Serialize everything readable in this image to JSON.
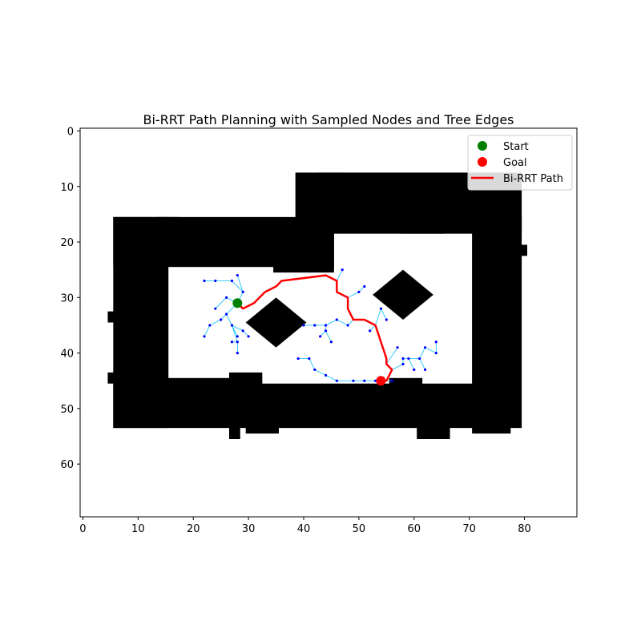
{
  "chart_data": {
    "type": "scatter",
    "title": "Bi-RRT Path Planning with Sampled Nodes and Tree Edges",
    "xlabel": "",
    "ylabel": "",
    "xlim": [
      -0.5,
      89.5
    ],
    "ylim": [
      69.5,
      -0.5
    ],
    "y_inverted": true,
    "x_ticks": [
      0,
      10,
      20,
      30,
      40,
      50,
      60,
      70,
      80
    ],
    "y_ticks": [
      0,
      10,
      20,
      30,
      40,
      50,
      60
    ],
    "grid": false,
    "legend": {
      "placement": "top-right",
      "entries": [
        {
          "label": "Start",
          "marker": "circle",
          "color": "#008000"
        },
        {
          "label": "Goal",
          "marker": "circle",
          "color": "#ff0000"
        },
        {
          "label": "Bi-RRT Path",
          "marker": "line",
          "color": "#ff0000"
        }
      ]
    },
    "colors": {
      "obstacle": "#000000",
      "free": "#ffffff",
      "tree_node": "#0000ff",
      "tree_edge": "#00bfff",
      "path": "#ff0000",
      "start": "#008000",
      "goal": "#ff0000"
    },
    "start": [
      28,
      31
    ],
    "goal": [
      54,
      45
    ],
    "obstacle_rects": [
      [
        6,
        16,
        15,
        53
      ],
      [
        6,
        16,
        45,
        24
      ],
      [
        6,
        46,
        76,
        53
      ],
      [
        71,
        16,
        79,
        53
      ],
      [
        39,
        8,
        79,
        18
      ],
      [
        43,
        8,
        47,
        16
      ],
      [
        14,
        16,
        17,
        17
      ],
      [
        35,
        18,
        45,
        25
      ],
      [
        12,
        45,
        29,
        46
      ],
      [
        27,
        44,
        32,
        46
      ],
      [
        58,
        16,
        65,
        18
      ],
      [
        66,
        11,
        69,
        12
      ],
      [
        71,
        53,
        77,
        54
      ],
      [
        5,
        33,
        6,
        34
      ],
      [
        5,
        44,
        6,
        45
      ],
      [
        79,
        21,
        80,
        22
      ],
      [
        30,
        53,
        35,
        54
      ],
      [
        27,
        53,
        28,
        55
      ],
      [
        61,
        53,
        66,
        55
      ],
      [
        56,
        45,
        61,
        47
      ]
    ],
    "obstacle_blobs": [
      {
        "cx": 35,
        "cy": 34.5,
        "rx": 5.5,
        "ry": 4.5
      },
      {
        "cx": 58,
        "cy": 29.5,
        "rx": 5.5,
        "ry": 4.5
      }
    ],
    "path": [
      [
        28,
        31
      ],
      [
        29,
        32
      ],
      [
        31,
        31
      ],
      [
        33,
        29
      ],
      [
        35,
        28
      ],
      [
        36,
        27
      ],
      [
        44,
        26
      ],
      [
        46,
        27
      ],
      [
        46,
        29
      ],
      [
        48,
        30
      ],
      [
        48,
        32
      ],
      [
        49,
        34
      ],
      [
        51,
        34
      ],
      [
        53,
        35
      ],
      [
        54,
        38
      ],
      [
        55,
        41
      ],
      [
        55,
        42
      ],
      [
        56,
        43
      ],
      [
        55,
        45
      ],
      [
        54,
        45
      ]
    ],
    "tree_edges": [
      [
        [
          28,
          31
        ],
        [
          29,
          29
        ]
      ],
      [
        [
          29,
          29
        ],
        [
          27,
          27
        ]
      ],
      [
        [
          27,
          27
        ],
        [
          24,
          27
        ]
      ],
      [
        [
          24,
          27
        ],
        [
          22,
          27
        ]
      ],
      [
        [
          29,
          29
        ],
        [
          28,
          26
        ]
      ],
      [
        [
          28,
          31
        ],
        [
          26,
          33
        ]
      ],
      [
        [
          26,
          33
        ],
        [
          25,
          34
        ]
      ],
      [
        [
          25,
          34
        ],
        [
          23,
          35
        ]
      ],
      [
        [
          23,
          35
        ],
        [
          22,
          37
        ]
      ],
      [
        [
          26,
          33
        ],
        [
          27,
          35
        ]
      ],
      [
        [
          27,
          35
        ],
        [
          28,
          37
        ]
      ],
      [
        [
          27,
          35
        ],
        [
          28,
          38
        ]
      ],
      [
        [
          28,
          38
        ],
        [
          27,
          38
        ]
      ],
      [
        [
          28,
          38
        ],
        [
          28,
          40
        ]
      ],
      [
        [
          28,
          31
        ],
        [
          26,
          30
        ]
      ],
      [
        [
          26,
          30
        ],
        [
          24,
          32
        ]
      ],
      [
        [
          27,
          35
        ],
        [
          29,
          36
        ]
      ],
      [
        [
          29,
          36
        ],
        [
          30,
          37
        ]
      ],
      [
        [
          35,
          28
        ],
        [
          36,
          27
        ]
      ],
      [
        [
          46,
          27
        ],
        [
          47,
          25
        ]
      ],
      [
        [
          48,
          30
        ],
        [
          50,
          29
        ]
      ],
      [
        [
          50,
          29
        ],
        [
          51,
          28
        ]
      ],
      [
        [
          49,
          34
        ],
        [
          48,
          35
        ]
      ],
      [
        [
          48,
          35
        ],
        [
          46,
          34
        ]
      ],
      [
        [
          46,
          34
        ],
        [
          44,
          35
        ]
      ],
      [
        [
          44,
          35
        ],
        [
          42,
          35
        ]
      ],
      [
        [
          42,
          35
        ],
        [
          40,
          35
        ]
      ],
      [
        [
          44,
          35
        ],
        [
          44,
          36
        ]
      ],
      [
        [
          44,
          36
        ],
        [
          43,
          37
        ]
      ],
      [
        [
          44,
          36
        ],
        [
          45,
          38
        ]
      ],
      [
        [
          53,
          35
        ],
        [
          54,
          32
        ]
      ],
      [
        [
          54,
          32
        ],
        [
          55,
          34
        ]
      ],
      [
        [
          53,
          35
        ],
        [
          52,
          36
        ]
      ],
      [
        [
          55,
          45
        ],
        [
          53,
          45
        ]
      ],
      [
        [
          53,
          45
        ],
        [
          51,
          45
        ]
      ],
      [
        [
          51,
          45
        ],
        [
          49,
          45
        ]
      ],
      [
        [
          49,
          45
        ],
        [
          46,
          45
        ]
      ],
      [
        [
          46,
          45
        ],
        [
          44,
          44
        ]
      ],
      [
        [
          44,
          44
        ],
        [
          42,
          43
        ]
      ],
      [
        [
          42,
          43
        ],
        [
          41,
          41
        ]
      ],
      [
        [
          41,
          41
        ],
        [
          39,
          41
        ]
      ],
      [
        [
          55,
          42
        ],
        [
          57,
          39
        ]
      ],
      [
        [
          56,
          43
        ],
        [
          58,
          42
        ]
      ],
      [
        [
          58,
          42
        ],
        [
          58,
          41
        ]
      ],
      [
        [
          58,
          41
        ],
        [
          59,
          41
        ]
      ],
      [
        [
          59,
          41
        ],
        [
          60,
          43
        ]
      ],
      [
        [
          59,
          41
        ],
        [
          61,
          41
        ]
      ],
      [
        [
          61,
          41
        ],
        [
          62,
          43
        ]
      ],
      [
        [
          61,
          41
        ],
        [
          62,
          39
        ]
      ],
      [
        [
          62,
          39
        ],
        [
          64,
          40
        ]
      ],
      [
        [
          64,
          40
        ],
        [
          64,
          38
        ]
      ],
      [
        [
          55,
          45
        ],
        [
          56,
          45
        ]
      ]
    ],
    "tree_nodes": [
      [
        22,
        27
      ],
      [
        24,
        27
      ],
      [
        27,
        27
      ],
      [
        28,
        26
      ],
      [
        29,
        29
      ],
      [
        26,
        30
      ],
      [
        24,
        32
      ],
      [
        26,
        33
      ],
      [
        25,
        34
      ],
      [
        23,
        35
      ],
      [
        22,
        37
      ],
      [
        27,
        35
      ],
      [
        28,
        37
      ],
      [
        29,
        36
      ],
      [
        30,
        37
      ],
      [
        27,
        38
      ],
      [
        28,
        38
      ],
      [
        28,
        40
      ],
      [
        47,
        25
      ],
      [
        50,
        29
      ],
      [
        51,
        28
      ],
      [
        40,
        35
      ],
      [
        42,
        35
      ],
      [
        44,
        35
      ],
      [
        46,
        34
      ],
      [
        48,
        35
      ],
      [
        44,
        36
      ],
      [
        43,
        37
      ],
      [
        45,
        38
      ],
      [
        54,
        32
      ],
      [
        55,
        34
      ],
      [
        52,
        36
      ],
      [
        39,
        41
      ],
      [
        41,
        41
      ],
      [
        42,
        43
      ],
      [
        44,
        44
      ],
      [
        46,
        45
      ],
      [
        49,
        45
      ],
      [
        51,
        45
      ],
      [
        53,
        45
      ],
      [
        56,
        45
      ],
      [
        57,
        39
      ],
      [
        58,
        42
      ],
      [
        58,
        41
      ],
      [
        59,
        41
      ],
      [
        60,
        43
      ],
      [
        61,
        41
      ],
      [
        62,
        43
      ],
      [
        62,
        39
      ],
      [
        64,
        40
      ],
      [
        64,
        38
      ]
    ]
  }
}
